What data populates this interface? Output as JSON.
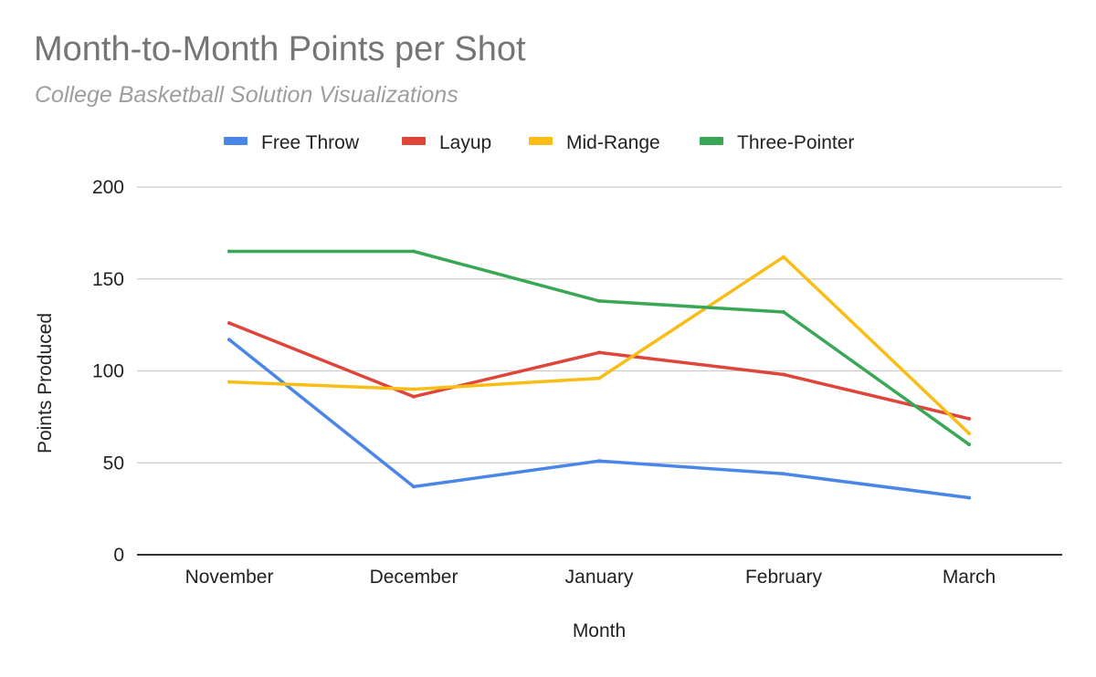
{
  "chart_data": {
    "type": "line",
    "title": "Month-to-Month Points per Shot",
    "subtitle": "College Basketball Solution Visualizations",
    "xlabel": "Month",
    "ylabel": "Points Produced",
    "categories": [
      "November",
      "December",
      "January",
      "February",
      "March"
    ],
    "ylim": [
      0,
      200
    ],
    "yticks": [
      0,
      50,
      100,
      150,
      200
    ],
    "grid": true,
    "legend_position": "top",
    "series": [
      {
        "name": "Free Throw",
        "color": "#4a86e8",
        "values": [
          117,
          37,
          51,
          44,
          31
        ]
      },
      {
        "name": "Layup",
        "color": "#e0453a",
        "values": [
          126,
          86,
          110,
          98,
          74
        ]
      },
      {
        "name": "Mid-Range",
        "color": "#f9bd16",
        "values": [
          94,
          90,
          96,
          162,
          66
        ]
      },
      {
        "name": "Three-Pointer",
        "color": "#3aa757",
        "values": [
          165,
          165,
          138,
          132,
          60
        ]
      }
    ]
  }
}
